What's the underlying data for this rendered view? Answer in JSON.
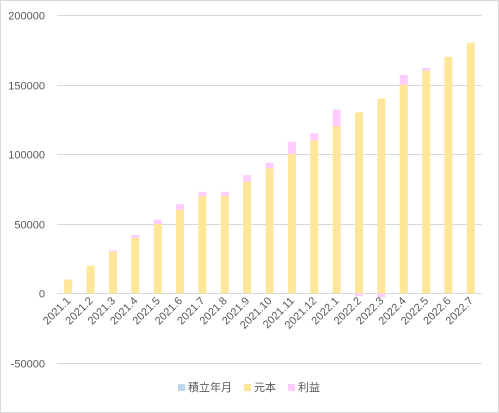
{
  "chart_data": {
    "type": "bar",
    "stacked": true,
    "title": "",
    "xlabel": "",
    "ylabel": "",
    "ylim": [
      -50000,
      200000
    ],
    "yticks": [
      200000,
      150000,
      100000,
      50000,
      0,
      -50000
    ],
    "grid": true,
    "legend_position": "bottom",
    "categories": [
      "2021.1",
      "2021.2",
      "2021.3",
      "2021.4",
      "2021.5",
      "2021.6",
      "2021.7",
      "2021.8",
      "2021.9",
      "2021.10",
      "2021.11",
      "2021.12",
      "2022.1",
      "2022.2",
      "2022.3",
      "2022.4",
      "2022.5",
      "2022.6",
      "2022.7"
    ],
    "series": [
      {
        "name": "積立年月",
        "color": "#bdd7ee",
        "values": [
          0,
          0,
          0,
          0,
          0,
          0,
          0,
          0,
          0,
          0,
          0,
          0,
          0,
          0,
          0,
          0,
          0,
          0,
          0
        ]
      },
      {
        "name": "元本",
        "color": "#ffe699",
        "values": [
          10000,
          20000,
          30000,
          40000,
          50000,
          60000,
          70000,
          70000,
          80000,
          90000,
          100000,
          110000,
          120000,
          130000,
          140000,
          150000,
          160000,
          170000,
          180000
        ]
      },
      {
        "name": "利益",
        "color": "#ffccff",
        "values": [
          0,
          0,
          1000,
          2000,
          3000,
          4000,
          3000,
          3000,
          5000,
          4000,
          9000,
          5000,
          12000,
          -2000,
          -3000,
          7000,
          2000,
          0,
          0
        ]
      }
    ]
  }
}
